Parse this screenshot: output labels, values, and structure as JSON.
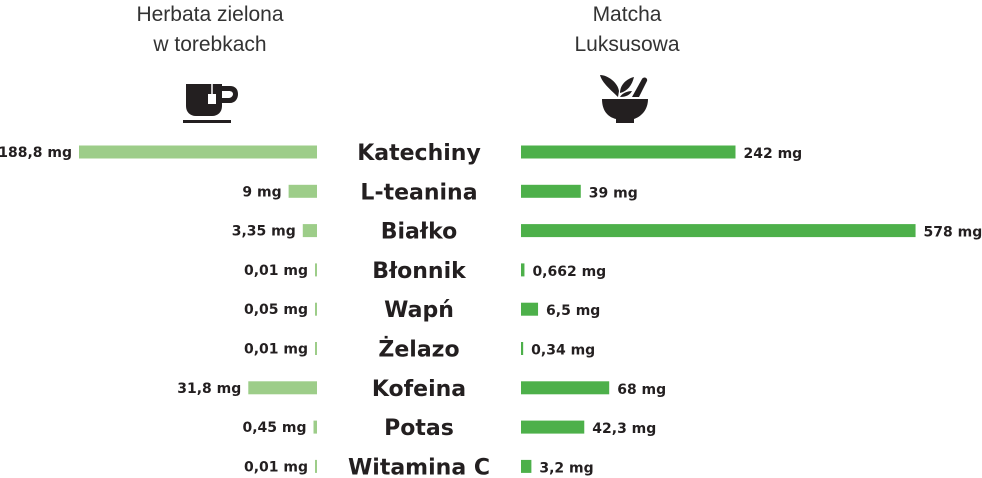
{
  "chart_data": {
    "type": "bar",
    "orientation": "horizontal-butterfly",
    "unit": "mg",
    "categories": [
      "Katechiny",
      "L-teanina",
      "Białko",
      "Błonnik",
      "Wapń",
      "Żelazo",
      "Kofeina",
      "Potas",
      "Witamina C"
    ],
    "series": [
      {
        "name": "Herbata zielona w torebkach",
        "name_lines": [
          "Herbata zielona",
          "w torebkach"
        ],
        "icon": "teacup-icon",
        "color": "#9dcd89",
        "values": [
          188.8,
          9,
          3.35,
          0.01,
          0.05,
          0.01,
          31.8,
          0.45,
          0.01
        ],
        "labels": [
          "188,8 mg",
          "9 mg",
          "3,35 mg",
          "0,01 mg",
          "0,05 mg",
          "0,01 mg",
          "31,8 mg",
          "0,45 mg",
          "0,01 mg"
        ]
      },
      {
        "name": "Matcha Luksusowa",
        "name_lines": [
          "Matcha",
          "Luksusowa"
        ],
        "icon": "mortar-leaves-icon",
        "color": "#4db04a",
        "values": [
          242,
          39,
          578,
          0.662,
          6.5,
          0.34,
          68,
          42.3,
          3.2
        ],
        "labels": [
          "242 mg",
          "39 mg",
          "578 mg",
          "0,662 mg",
          "6,5 mg",
          "0,34 mg",
          "68 mg",
          "42,3 mg",
          "3,2 mg"
        ]
      }
    ],
    "grid": false,
    "legend": "top"
  }
}
